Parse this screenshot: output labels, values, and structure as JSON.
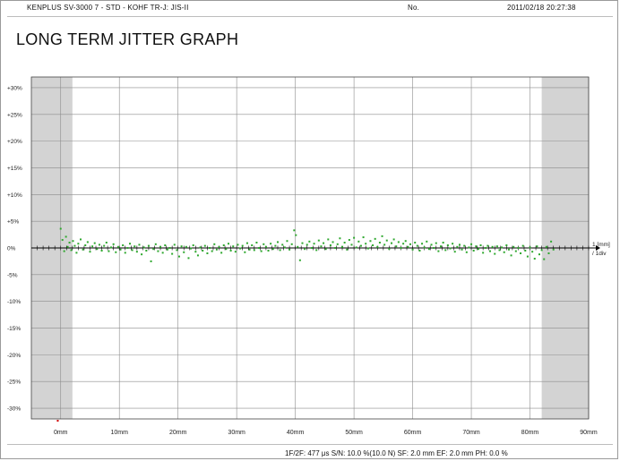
{
  "header": {
    "left": "KENPLUS SV-3000  7 - STD - KOHF    TR-J: JIS-II",
    "middle": "No.",
    "datetime": "2011/02/18   20:27:38"
  },
  "title": "LONG TERM JITTER GRAPH",
  "footer": {
    "params": "1F/2F: 477 μs   S/N: 10.0 %(10.0 N)   SF: 2.0 mm   EF: 2.0 mm   PH: 0.0 %"
  },
  "colors": {
    "points": "#2fa82f",
    "shade": "#d3d3d3",
    "grid": "#8c8c8c",
    "axis": "#000000"
  },
  "chart_data": {
    "type": "scatter",
    "title": "LONG TERM JITTER GRAPH",
    "xlabel": "",
    "ylabel": "",
    "x_unit": "mm",
    "y_unit": "%",
    "xlim": [
      -5,
      90
    ],
    "ylim": [
      -32,
      32
    ],
    "x_ticks": [
      0,
      10,
      20,
      30,
      40,
      50,
      60,
      70,
      80,
      90
    ],
    "x_tick_labels": [
      "0mm",
      "10mm",
      "20mm",
      "30mm",
      "40mm",
      "50mm",
      "60mm",
      "70mm",
      "80mm",
      "90mm"
    ],
    "y_ticks": [
      30,
      25,
      20,
      15,
      10,
      5,
      0,
      -5,
      -10,
      -15,
      -20,
      -25,
      -30
    ],
    "y_tick_labels": [
      "+30%",
      "+25%",
      "+20%",
      "+15%",
      "+10%",
      "+5%",
      "0%",
      "-5%",
      "-10%",
      "-15%",
      "-20%",
      "-25%",
      "-30%"
    ],
    "x_scale_label": "1 [mm] / 1div",
    "shaded_ranges": [
      [
        -5,
        2
      ],
      [
        82,
        90
      ]
    ],
    "grid": true,
    "series": [
      {
        "values_summary": "jitter deviation around 0% (approx. -3% to +4%) sampled from 0 mm to 84 mm",
        "x_range": [
          0,
          84
        ],
        "points": [
          [
            0.0,
            3.6
          ],
          [
            0.3,
            1.5
          ],
          [
            0.6,
            -0.6
          ],
          [
            0.9,
            2.1
          ],
          [
            1.2,
            0.2
          ],
          [
            1.5,
            1.0
          ],
          [
            1.8,
            -0.4
          ],
          [
            2.1,
            1.3
          ],
          [
            2.4,
            0.4
          ],
          [
            2.7,
            -0.9
          ],
          [
            3.0,
            0.8
          ],
          [
            3.4,
            1.6
          ],
          [
            3.8,
            -0.3
          ],
          [
            4.2,
            0.5
          ],
          [
            4.6,
            1.1
          ],
          [
            5.0,
            -0.7
          ],
          [
            5.4,
            0.3
          ],
          [
            5.8,
            0.9
          ],
          [
            6.2,
            -0.2
          ],
          [
            6.6,
            0.6
          ],
          [
            7.0,
            -0.5
          ],
          [
            7.4,
            0.4
          ],
          [
            7.8,
            1.0
          ],
          [
            8.2,
            -0.6
          ],
          [
            8.6,
            0.1
          ],
          [
            9.0,
            0.7
          ],
          [
            9.4,
            -0.8
          ],
          [
            9.8,
            0.2
          ],
          [
            10.2,
            -0.3
          ],
          [
            10.6,
            0.5
          ],
          [
            11.0,
            -0.9
          ],
          [
            11.4,
            0.0
          ],
          [
            11.8,
            0.8
          ],
          [
            12.2,
            -0.4
          ],
          [
            12.6,
            0.3
          ],
          [
            13.0,
            -0.7
          ],
          [
            13.4,
            0.6
          ],
          [
            13.8,
            -1.2
          ],
          [
            14.2,
            0.1
          ],
          [
            14.6,
            -0.5
          ],
          [
            15.0,
            0.4
          ],
          [
            15.4,
            -2.5
          ],
          [
            15.8,
            -0.2
          ],
          [
            16.2,
            0.7
          ],
          [
            16.6,
            -0.6
          ],
          [
            17.0,
            0.2
          ],
          [
            17.4,
            -0.9
          ],
          [
            17.8,
            0.5
          ],
          [
            18.2,
            -0.3
          ],
          [
            18.6,
            0.0
          ],
          [
            19.0,
            -1.1
          ],
          [
            19.4,
            0.6
          ],
          [
            19.8,
            -0.4
          ],
          [
            20.2,
            -1.6
          ],
          [
            20.6,
            0.3
          ],
          [
            21.0,
            -0.8
          ],
          [
            21.4,
            0.2
          ],
          [
            21.8,
            -1.9
          ],
          [
            22.2,
            -0.1
          ],
          [
            22.6,
            0.5
          ],
          [
            23.0,
            -0.7
          ],
          [
            23.4,
            -1.4
          ],
          [
            23.8,
            0.1
          ],
          [
            24.2,
            -0.5
          ],
          [
            24.6,
            0.4
          ],
          [
            25.0,
            -1.0
          ],
          [
            25.4,
            0.0
          ],
          [
            25.8,
            -0.6
          ],
          [
            26.2,
            0.7
          ],
          [
            26.6,
            -0.3
          ],
          [
            27.0,
            0.2
          ],
          [
            27.4,
            -0.9
          ],
          [
            27.8,
            0.5
          ],
          [
            28.2,
            -0.2
          ],
          [
            28.6,
            0.8
          ],
          [
            29.0,
            -0.5
          ],
          [
            29.4,
            0.3
          ],
          [
            29.8,
            -0.7
          ],
          [
            30.2,
            0.6
          ],
          [
            30.6,
            -0.1
          ],
          [
            31.0,
            0.4
          ],
          [
            31.4,
            -0.8
          ],
          [
            31.8,
            0.9
          ],
          [
            32.2,
            -0.3
          ],
          [
            32.6,
            0.5
          ],
          [
            33.0,
            -0.4
          ],
          [
            33.4,
            1.0
          ],
          [
            33.8,
            0.0
          ],
          [
            34.2,
            -0.6
          ],
          [
            34.6,
            0.7
          ],
          [
            35.0,
            0.2
          ],
          [
            35.4,
            -0.5
          ],
          [
            35.8,
            0.8
          ],
          [
            36.2,
            -0.2
          ],
          [
            36.6,
            0.4
          ],
          [
            37.0,
            1.1
          ],
          [
            37.4,
            -0.4
          ],
          [
            37.8,
            0.6
          ],
          [
            38.2,
            0.1
          ],
          [
            38.6,
            1.3
          ],
          [
            39.0,
            -0.3
          ],
          [
            39.4,
            0.7
          ],
          [
            39.8,
            3.3
          ],
          [
            40.1,
            2.4
          ],
          [
            40.4,
            0.2
          ],
          [
            40.8,
            -2.3
          ],
          [
            41.2,
            0.9
          ],
          [
            41.6,
            -0.2
          ],
          [
            42.0,
            0.6
          ],
          [
            42.4,
            1.2
          ],
          [
            42.8,
            0.0
          ],
          [
            43.2,
            0.8
          ],
          [
            43.6,
            -0.4
          ],
          [
            44.0,
            1.4
          ],
          [
            44.4,
            0.3
          ],
          [
            44.8,
            0.9
          ],
          [
            45.2,
            -0.2
          ],
          [
            45.6,
            1.6
          ],
          [
            46.0,
            0.5
          ],
          [
            46.4,
            1.1
          ],
          [
            46.8,
            0.0
          ],
          [
            47.2,
            0.7
          ],
          [
            47.6,
            1.8
          ],
          [
            48.0,
            0.2
          ],
          [
            48.4,
            1.0
          ],
          [
            48.8,
            -0.3
          ],
          [
            49.2,
            1.5
          ],
          [
            49.6,
            0.6
          ],
          [
            50.0,
            1.9
          ],
          [
            50.4,
            0.1
          ],
          [
            50.8,
            1.2
          ],
          [
            51.2,
            0.4
          ],
          [
            51.6,
            2.0
          ],
          [
            52.0,
            0.8
          ],
          [
            52.4,
            -0.1
          ],
          [
            52.8,
            1.3
          ],
          [
            53.2,
            0.5
          ],
          [
            53.6,
            1.7
          ],
          [
            54.0,
            0.2
          ],
          [
            54.4,
            1.0
          ],
          [
            54.8,
            2.2
          ],
          [
            55.2,
            0.6
          ],
          [
            55.6,
            1.4
          ],
          [
            56.0,
            -0.2
          ],
          [
            56.4,
            0.9
          ],
          [
            56.8,
            1.6
          ],
          [
            57.2,
            0.3
          ],
          [
            57.6,
            1.1
          ],
          [
            58.0,
            0.0
          ],
          [
            58.4,
            0.8
          ],
          [
            58.8,
            1.3
          ],
          [
            59.2,
            0.2
          ],
          [
            59.6,
            0.7
          ],
          [
            60.0,
            -0.3
          ],
          [
            60.4,
            1.0
          ],
          [
            60.8,
            0.4
          ],
          [
            61.2,
            -0.5
          ],
          [
            61.6,
            0.8
          ],
          [
            62.0,
            0.1
          ],
          [
            62.4,
            1.2
          ],
          [
            62.8,
            -0.2
          ],
          [
            63.2,
            0.6
          ],
          [
            63.6,
            0.0
          ],
          [
            64.0,
            0.9
          ],
          [
            64.4,
            -0.6
          ],
          [
            64.8,
            0.3
          ],
          [
            65.2,
            1.0
          ],
          [
            65.6,
            -0.4
          ],
          [
            66.0,
            0.5
          ],
          [
            66.4,
            -0.1
          ],
          [
            66.8,
            0.8
          ],
          [
            67.2,
            -0.7
          ],
          [
            67.6,
            0.2
          ],
          [
            68.0,
            0.6
          ],
          [
            68.4,
            -0.3
          ],
          [
            68.8,
            0.4
          ],
          [
            69.2,
            -0.8
          ],
          [
            69.6,
            0.1
          ],
          [
            70.0,
            0.7
          ],
          [
            70.4,
            -0.5
          ],
          [
            70.8,
            0.3
          ],
          [
            71.2,
            -0.2
          ],
          [
            71.6,
            0.5
          ],
          [
            72.0,
            -0.9
          ],
          [
            72.4,
            0.0
          ],
          [
            72.8,
            0.4
          ],
          [
            73.2,
            -0.6
          ],
          [
            73.6,
            0.2
          ],
          [
            74.0,
            -1.1
          ],
          [
            74.4,
            0.3
          ],
          [
            74.8,
            -0.4
          ],
          [
            75.2,
            0.1
          ],
          [
            75.6,
            -0.8
          ],
          [
            76.0,
            0.5
          ],
          [
            76.4,
            -0.3
          ],
          [
            76.8,
            -1.4
          ],
          [
            77.2,
            0.2
          ],
          [
            77.6,
            -0.6
          ],
          [
            78.0,
            0.0
          ],
          [
            78.4,
            -1.0
          ],
          [
            78.8,
            0.4
          ],
          [
            79.2,
            -0.5
          ],
          [
            79.6,
            -1.6
          ],
          [
            80.0,
            0.1
          ],
          [
            80.4,
            -0.7
          ],
          [
            80.8,
            -2.0
          ],
          [
            81.2,
            0.3
          ],
          [
            81.6,
            -1.2
          ],
          [
            82.0,
            -0.4
          ],
          [
            82.4,
            -2.1
          ],
          [
            82.8,
            0.2
          ],
          [
            83.2,
            -1.0
          ],
          [
            83.6,
            1.2
          ],
          [
            84.0,
            -0.3
          ]
        ]
      }
    ]
  }
}
